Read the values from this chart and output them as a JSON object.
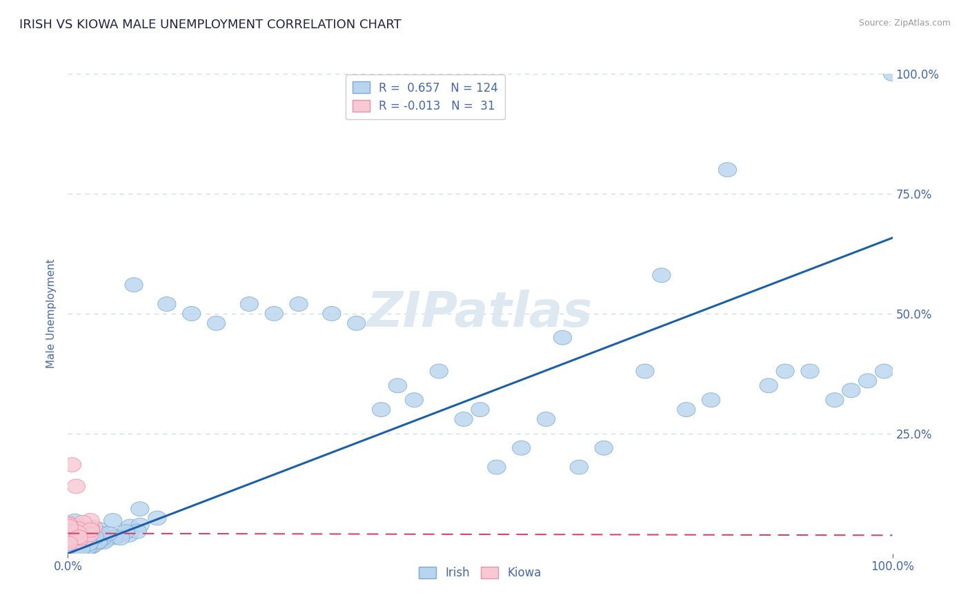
{
  "title": "IRISH VS KIOWA MALE UNEMPLOYMENT CORRELATION CHART",
  "source_text": "Source: ZipAtlas.com",
  "ylabel": "Male Unemployment",
  "right_ytick_labels": [
    "25.0%",
    "50.0%",
    "75.0%",
    "100.0%"
  ],
  "right_ytick_values": [
    0.25,
    0.5,
    0.75,
    1.0
  ],
  "xtick_labels": [
    "0.0%",
    "100.0%"
  ],
  "xlim": [
    0.0,
    1.0
  ],
  "ylim": [
    0.0,
    1.0
  ],
  "irish_face_color": "#b8d4ee",
  "irish_edge_color": "#7aaad0",
  "kiowa_face_color": "#f8c8d4",
  "kiowa_edge_color": "#e890a8",
  "regression_irish_color": "#1a5fa8",
  "regression_kiowa_color": "#d44466",
  "legend_R_irish": "0.657",
  "legend_N_irish": "124",
  "legend_R_kiowa": "-0.013",
  "legend_N_kiowa": "31",
  "title_color": "#222244",
  "axis_label_color": "#4466aa",
  "tick_color": "#4466aa",
  "grid_color": "#c8d8e8",
  "background_color": "#ffffff",
  "watermark_color": "#dde8f0",
  "irish_regression_x0": 0.0,
  "irish_regression_y0": 0.0,
  "irish_regression_x1": 1.0,
  "irish_regression_y1": 0.658,
  "kiowa_regression_x0": 0.0,
  "kiowa_regression_y0": 0.042,
  "kiowa_regression_x1": 1.0,
  "kiowa_regression_y1": 0.038
}
